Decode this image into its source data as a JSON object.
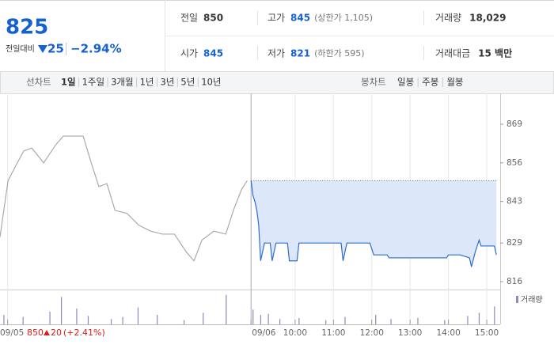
{
  "header": {
    "price": "825",
    "change_label": "전일대비",
    "change": "25",
    "change_pct": "−2.94%",
    "stats": [
      {
        "label": "전일",
        "value": "850"
      },
      {
        "label": "고가",
        "value": "845",
        "extra": "(상한가 1,105)"
      },
      {
        "label": "거래량",
        "value": "18,029"
      },
      {
        "label": "시가",
        "value": "845"
      },
      {
        "label": "저가",
        "value": "821",
        "extra": "(하한가 595)"
      },
      {
        "label": "거래대금",
        "value": "15 백만"
      }
    ]
  },
  "tabs": {
    "line_label": "선차트",
    "line_periods": [
      "1일",
      "1주일",
      "3개월",
      "1년",
      "3년",
      "5년",
      "10년"
    ],
    "candle_label": "봉차트",
    "candle_periods": [
      "일봉",
      "주봉",
      "월봉"
    ]
  },
  "prev_day": {
    "close": "850",
    "change": "20",
    "change_pct": "(+2.41%)"
  },
  "chart_data": {
    "type": "line",
    "xlim": [
      2.3,
      15.35
    ],
    "ylim": [
      813.6,
      879.4
    ],
    "yticks": [
      816,
      829,
      843,
      856,
      869
    ],
    "xticks": [
      {
        "value": 2.5,
        "label": "09/05"
      },
      {
        "value": 8.85,
        "label": "09/06"
      },
      {
        "value": 10,
        "label": "10:00"
      },
      {
        "value": 11,
        "label": "11:00"
      },
      {
        "value": 12,
        "label": "12:00"
      },
      {
        "value": 13,
        "label": "13:00"
      },
      {
        "value": 14,
        "label": "14:00"
      },
      {
        "value": 15,
        "label": "15:00"
      }
    ],
    "series": [
      {
        "name": "09/05",
        "color": "#aaaaaa",
        "x": [
          2.3,
          2.51,
          2.71,
          2.92,
          3.13,
          3.44,
          3.75,
          3.95,
          4.26,
          4.47,
          4.68,
          4.88,
          5.09,
          5.3,
          5.61,
          5.92,
          6.23,
          6.54,
          6.85,
          7.16,
          7.36,
          7.57,
          7.88,
          8.19,
          8.39,
          8.6,
          8.75
        ],
        "values": [
          831,
          850,
          855,
          860,
          861,
          856,
          862,
          865,
          865,
          865,
          856,
          848,
          849,
          840,
          839,
          835,
          833,
          832,
          832,
          826,
          823,
          830,
          833,
          832,
          840,
          847,
          850
        ]
      },
      {
        "name": "09/06",
        "color": "#2c6cd0",
        "fill": "#dce8f9",
        "x": [
          8.85,
          8.9,
          8.95,
          9.0,
          9.05,
          9.1,
          9.2,
          9.35,
          9.4,
          9.5,
          9.8,
          9.85,
          10.05,
          10.1,
          11.2,
          11.25,
          11.35,
          11.95,
          12.05,
          12.4,
          12.45,
          13.95,
          14.0,
          14.3,
          14.55,
          14.6,
          14.7,
          14.8,
          14.85,
          15.2,
          15.25
        ],
        "values": [
          850,
          845,
          843,
          840,
          835,
          823,
          829,
          829,
          823,
          829,
          829,
          823,
          823,
          829,
          829,
          823,
          829,
          829,
          825,
          825,
          824,
          824,
          825,
          825,
          824,
          821,
          826,
          830,
          828,
          828,
          825
        ]
      }
    ],
    "volume": {
      "name": "거래량",
      "color": "#8f88b8",
      "ylim": [
        0,
        3000
      ],
      "x": [
        2.4,
        2.9,
        3.6,
        3.9,
        4.3,
        4.6,
        5.2,
        5.5,
        5.9,
        6.4,
        7.1,
        7.6,
        8.2,
        8.9,
        9.1,
        9.3,
        9.6,
        10.1,
        10.8,
        11.3,
        12.1,
        12.5,
        13.2,
        13.9,
        14.5,
        14.8,
        15.2
      ],
      "values": [
        900,
        700,
        1200,
        2600,
        1500,
        800,
        500,
        700,
        1600,
        900,
        400,
        1100,
        2800,
        1400,
        900,
        1000,
        500,
        600,
        400,
        700,
        900,
        500,
        600,
        400,
        800,
        1100,
        1700
      ]
    }
  }
}
